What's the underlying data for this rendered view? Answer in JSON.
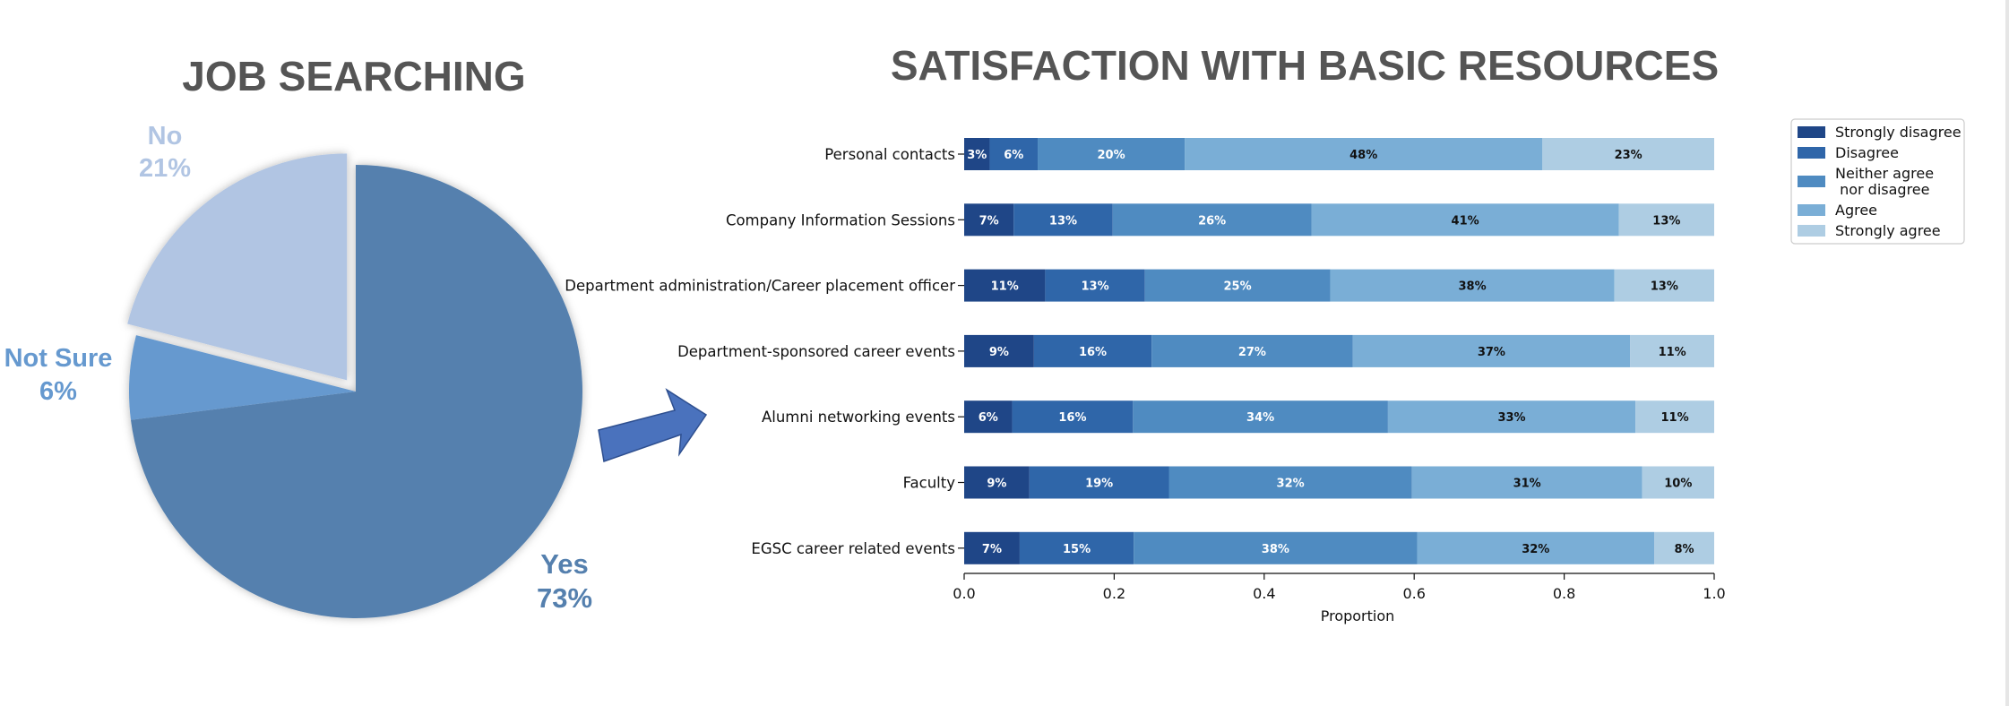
{
  "colors": {
    "title": "#555555",
    "pie_yes": "#5580ae",
    "pie_not_sure": "#6699cf",
    "pie_no": "#b1c5e3",
    "arrow": "#4a72bd",
    "likert": [
      "#1f4687",
      "#2f66a9",
      "#4f8bc1",
      "#7aaed6",
      "#aecde3"
    ]
  },
  "pie": {
    "title": "JOB SEARCHING",
    "slices": [
      {
        "label": "Yes",
        "pct_label": "73%",
        "value": 73,
        "color": "#5580ae",
        "exploded": false
      },
      {
        "label": "Not Sure",
        "pct_label": "6%",
        "value": 6,
        "color": "#6699cf",
        "exploded": false
      },
      {
        "label": "No",
        "pct_label": "21%",
        "value": 21,
        "color": "#b1c5e3",
        "exploded": true
      }
    ]
  },
  "arrow": {
    "icon": "right-arrow-icon"
  },
  "chart_data": [
    {
      "type": "pie",
      "title": "JOB SEARCHING",
      "categories": [
        "Yes",
        "Not Sure",
        "No"
      ],
      "values": [
        73,
        6,
        21
      ]
    },
    {
      "type": "bar",
      "orientation": "horizontal",
      "stacked": true,
      "title": "SATISFACTION WITH BASIC RESOURCES",
      "xlabel": "Proportion",
      "ylabel": "",
      "xlim": [
        0,
        1
      ],
      "xticks": [
        "0.0",
        "0.2",
        "0.4",
        "0.6",
        "0.8",
        "1.0"
      ],
      "categories": [
        "Personal contacts",
        "Company Information Sessions",
        "Department administration/Career placement officer",
        "Department-sponsored career events",
        "Alumni networking events",
        "Faculty",
        "EGSC career related events"
      ],
      "series": [
        {
          "name": "Strongly disagree",
          "values": [
            0.034,
            0.066,
            0.108,
            0.093,
            0.064,
            0.087,
            0.074
          ],
          "labels": [
            "3%",
            "7%",
            "11%",
            "9%",
            "6%",
            "9%",
            "7%"
          ]
        },
        {
          "name": "Disagree",
          "values": [
            0.064,
            0.132,
            0.133,
            0.157,
            0.161,
            0.186,
            0.152
          ],
          "labels": [
            "6%",
            "13%",
            "13%",
            "16%",
            "16%",
            "19%",
            "15%"
          ]
        },
        {
          "name": "Neither agree\n nor disagree",
          "values": [
            0.196,
            0.265,
            0.247,
            0.268,
            0.34,
            0.324,
            0.378
          ],
          "labels": [
            "20%",
            "26%",
            "25%",
            "27%",
            "34%",
            "32%",
            "38%"
          ]
        },
        {
          "name": "Agree",
          "values": [
            0.477,
            0.41,
            0.379,
            0.37,
            0.33,
            0.307,
            0.316
          ],
          "labels": [
            "48%",
            "41%",
            "38%",
            "37%",
            "33%",
            "31%",
            "32%"
          ]
        },
        {
          "name": "Strongly agree",
          "values": [
            0.229,
            0.127,
            0.133,
            0.112,
            0.105,
            0.096,
            0.08
          ],
          "labels": [
            "23%",
            "13%",
            "13%",
            "11%",
            "11%",
            "10%",
            "8%"
          ]
        }
      ],
      "legend_position": "top-right"
    }
  ]
}
